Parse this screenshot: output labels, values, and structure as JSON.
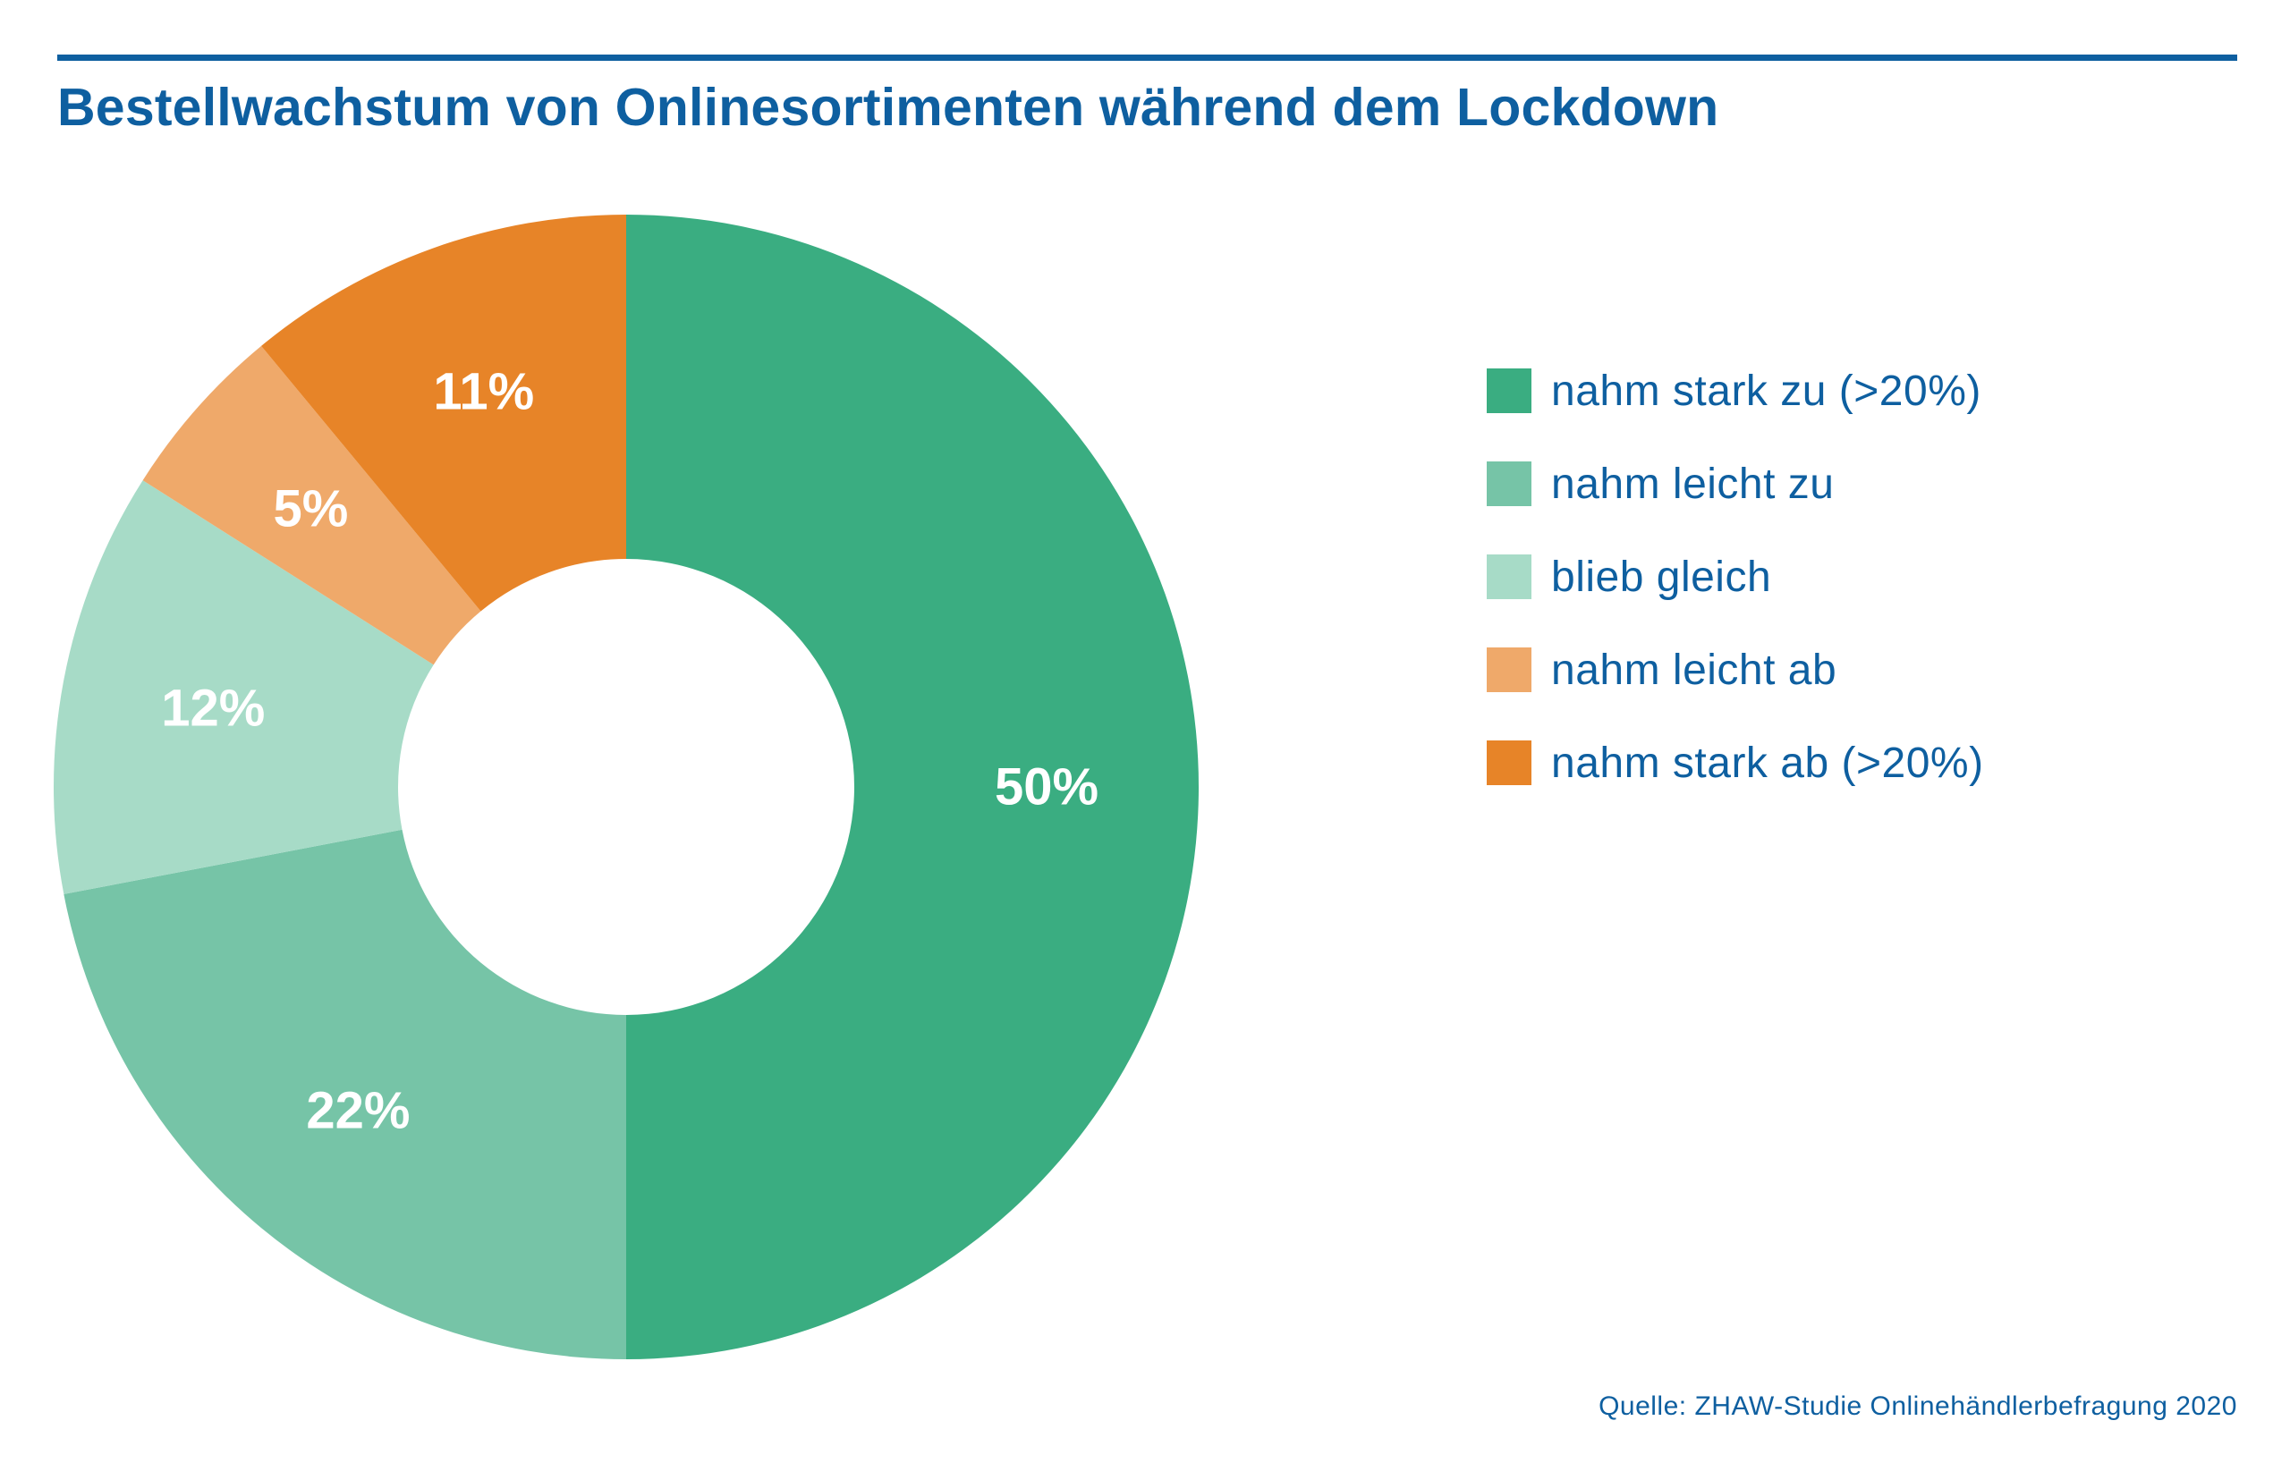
{
  "header": {
    "title": "Bestellwachstum von Onlinesortimenten während dem Lockdown"
  },
  "chart_data": {
    "type": "pie",
    "donut": true,
    "categories": [
      "nahm stark zu (>20%)",
      "nahm leicht zu",
      "blieb gleich",
      "nahm leicht ab",
      "nahm stark ab (>20%)"
    ],
    "values": [
      50,
      22,
      12,
      5,
      11
    ],
    "value_labels": [
      "50%",
      "22%",
      "12%",
      "5%",
      "11%"
    ],
    "colors": [
      "#3aad81",
      "#76c4a7",
      "#a7dbc7",
      "#efa96a",
      "#e78428"
    ],
    "legend_position": "right"
  },
  "source": "Quelle: ZHAW-Studie Onlinehändlerbefragung 2020"
}
